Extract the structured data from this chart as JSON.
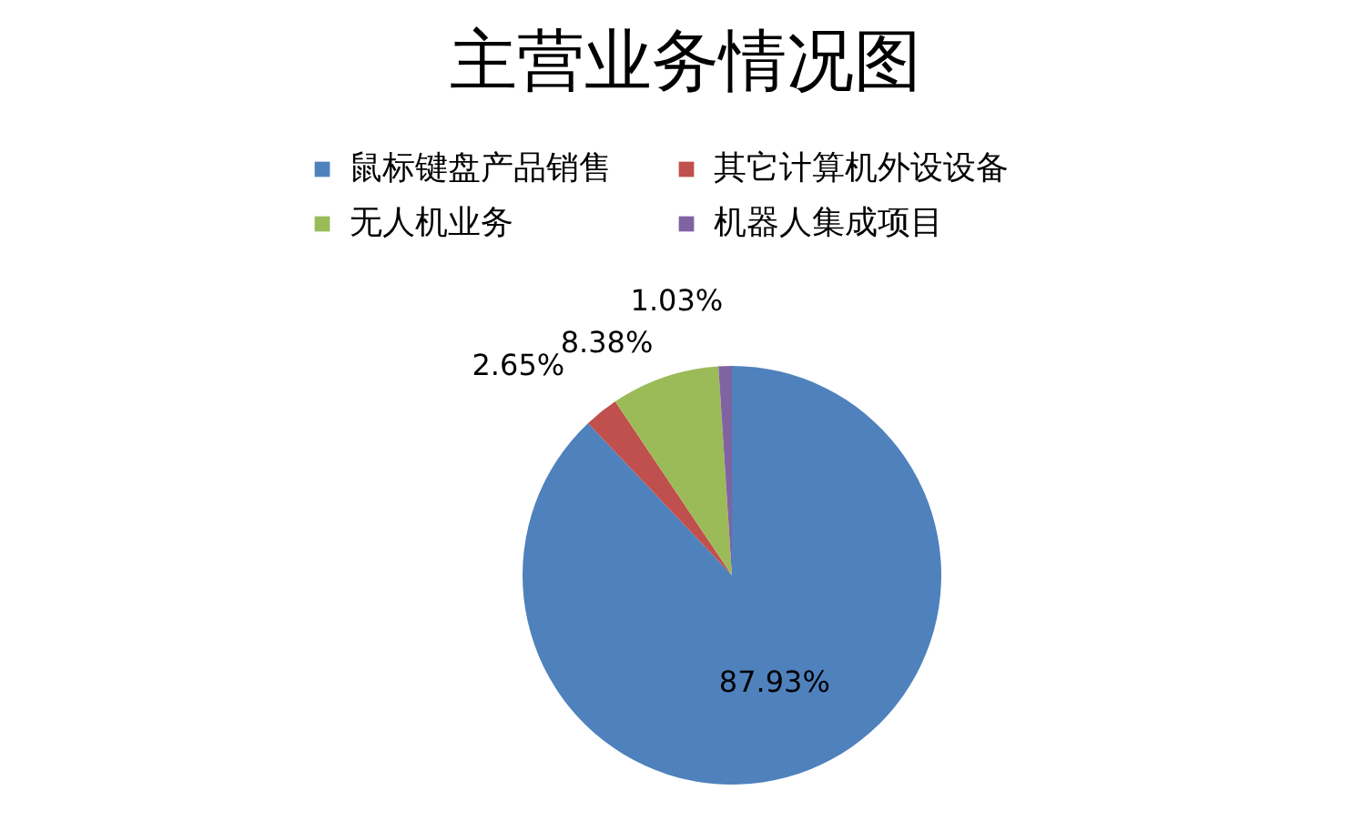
{
  "chart_data": {
    "type": "pie",
    "title": "主营业务情况图",
    "categories": [
      "鼠标键盘产品销售",
      "其它计算机外设设备",
      "无人机业务",
      "机器人集成项目"
    ],
    "values": [
      87.93,
      2.65,
      8.38,
      1.03
    ],
    "colors": [
      "#4f81bd",
      "#c0504d",
      "#9bbb59",
      "#8064a2"
    ],
    "value_labels": [
      "87.93%",
      "2.65%",
      "8.38%",
      "1.03%"
    ],
    "legend": "top"
  }
}
